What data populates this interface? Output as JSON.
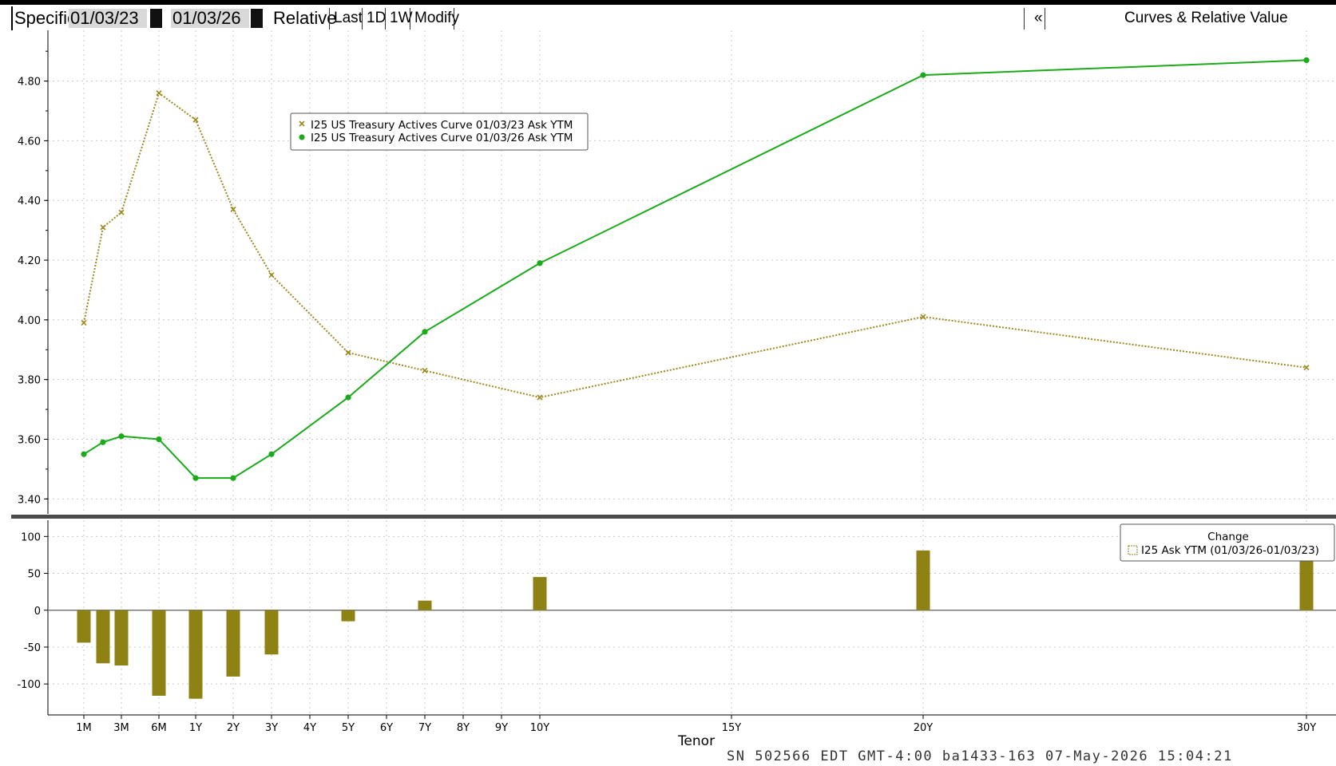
{
  "toolbar": {
    "mode_label": "Specific",
    "start_date": "01/03/23",
    "end_date": "01/03/26",
    "relative_label": "Relative",
    "last_label": "Last",
    "one_day_label": "1D",
    "one_week_label": "1W",
    "modify_label": "Modify",
    "collapse_label": "«",
    "panel_title": "Curves & Relative Value"
  },
  "footer": {
    "status_line": "SN 502566 EDT  GMT-4:00 ba1433-163 07-May-2026 15:04:21"
  },
  "colors": {
    "series_2023": "#9c8a1e",
    "series_2026": "#1aaa1a",
    "change_bars": "#8f8214"
  },
  "chart_data": [
    {
      "type": "line",
      "xlabel": "Tenor",
      "ylim": [
        3.35,
        4.97
      ],
      "yticks": [
        "3.40",
        "3.60",
        "3.80",
        "4.00",
        "4.20",
        "4.40",
        "4.60",
        "4.80"
      ],
      "grid": true,
      "legend_position": "top-left",
      "x_years": [
        0.0833,
        0.25,
        0.5,
        1,
        2,
        3,
        4,
        5,
        7,
        10,
        20,
        30
      ],
      "x_tick_labels": [
        "1M",
        "3M",
        "6M",
        "1Y",
        "2Y",
        "3Y",
        "4Y",
        "5Y",
        "6Y",
        "7Y",
        "8Y",
        "9Y",
        "10Y",
        "15Y",
        "20Y",
        "30Y"
      ],
      "series": [
        {
          "name": "I25 US Treasury Actives Curve 01/03/23 Ask YTM",
          "marker": "x",
          "style": "dotted",
          "values": [
            3.99,
            4.31,
            4.36,
            4.76,
            4.67,
            4.37,
            4.15,
            3.89,
            3.83,
            3.74,
            4.01,
            3.84
          ]
        },
        {
          "name": "I25 US Treasury Actives Curve 01/03/26 Ask YTM",
          "marker": "circle",
          "style": "solid",
          "values": [
            3.55,
            3.59,
            3.61,
            3.6,
            3.47,
            3.47,
            3.55,
            3.74,
            3.96,
            4.19,
            4.82,
            4.87
          ]
        }
      ]
    },
    {
      "type": "bar",
      "legend_title": "Change",
      "ylim": [
        -142,
        122
      ],
      "yticks": [
        "100",
        "50",
        "0",
        "-50",
        "-100"
      ],
      "legend_position": "top-right",
      "series": [
        {
          "name": "I25 Ask YTM (01/03/26-01/03/23)",
          "values": [
            -44,
            -72,
            -75,
            -116,
            -120,
            -90,
            -60,
            -15,
            13,
            45,
            81,
            103
          ]
        }
      ]
    }
  ]
}
